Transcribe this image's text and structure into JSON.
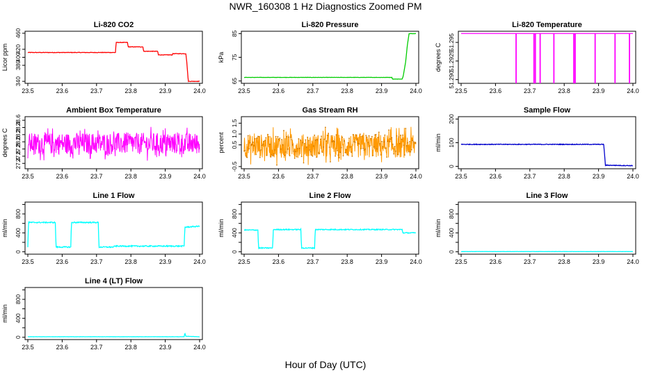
{
  "page": {
    "title": "NWR_160308  1 Hz Diagnostics Zoomed PM",
    "xlabel": "Hour of Day (UTC)"
  },
  "chart_data": [
    {
      "type": "line",
      "title": "Li-820 CO2",
      "ylabel": "Licor ppm",
      "xlim": [
        23.5,
        24.0
      ],
      "xticks": [
        "23.5",
        "23.6",
        "23.7",
        "23.8",
        "23.9",
        "24.0"
      ],
      "ylim": [
        335,
        465
      ],
      "yticks": [
        340,
        380,
        400,
        420,
        460
      ],
      "ytick_labels": [
        "340",
        "380",
        "400",
        "420",
        "460"
      ],
      "color": "#ff0000",
      "noise": 0.6,
      "series": [
        {
          "values": [
            [
              23.5,
              412
            ],
            [
              23.755,
              412
            ],
            [
              23.757,
              437
            ],
            [
              23.79,
              437
            ],
            [
              23.792,
              426
            ],
            [
              23.835,
              426
            ],
            [
              23.837,
              415
            ],
            [
              23.878,
              415
            ],
            [
              23.88,
              406
            ],
            [
              23.92,
              406
            ],
            [
              23.922,
              409
            ],
            [
              23.96,
              409
            ],
            [
              23.963,
              385
            ],
            [
              23.967,
              340
            ],
            [
              24.0,
              340
            ]
          ]
        }
      ]
    },
    {
      "type": "line",
      "title": "Li-820 Pressure",
      "ylabel": "kPa",
      "xlim": [
        23.5,
        24.0
      ],
      "xticks": [
        "23.5",
        "23.6",
        "23.7",
        "23.8",
        "23.9",
        "24.0"
      ],
      "ylim": [
        64,
        86
      ],
      "yticks": [
        65,
        75,
        85
      ],
      "ytick_labels": [
        "65",
        "75",
        "85"
      ],
      "color": "#00cc00",
      "noise": 0.05,
      "series": [
        {
          "values": [
            [
              23.5,
              66.5
            ],
            [
              23.93,
              66.5
            ],
            [
              23.932,
              65.8
            ],
            [
              23.96,
              65.8
            ],
            [
              23.963,
              67
            ],
            [
              23.97,
              73
            ],
            [
              23.975,
              80
            ],
            [
              23.98,
              85
            ],
            [
              24.0,
              85
            ]
          ]
        }
      ]
    },
    {
      "type": "line",
      "title": "Li-820 Temperature",
      "ylabel": "degrees C",
      "xlim": [
        23.5,
        24.0
      ],
      "xticks": [
        "23.5",
        "23.6",
        "23.7",
        "23.8",
        "23.9",
        "24.0"
      ],
      "ylim": [
        51.2895,
        51.2965
      ],
      "yticks": [
        51.29,
        51.2925,
        51.295
      ],
      "ytick_labels": [
        "51.290",
        "51.2925",
        "51.295"
      ],
      "color": "#ff00ff",
      "noise": 0,
      "baseline": 51.2962,
      "spikes": [
        23.66,
        23.712,
        23.716,
        23.73,
        23.77,
        23.828,
        23.832,
        23.89,
        23.948,
        23.99
      ]
    },
    {
      "type": "line",
      "title": "Ambient Box Temperature",
      "ylabel": "degrees C",
      "xlim": [
        23.5,
        24.0
      ],
      "xticks": [
        "23.5",
        "23.6",
        "23.7",
        "23.8",
        "23.9",
        "24.0"
      ],
      "ylim": [
        27.25,
        28.7
      ],
      "yticks": [
        27.4,
        27.6,
        27.8,
        28.0,
        28.2,
        28.4,
        28.6
      ],
      "ytick_labels": [
        "27.4",
        "27.6",
        "27.8",
        "28.0",
        "28.2",
        "28.4",
        "28.6"
      ],
      "color": "#ff00ff",
      "noise": 0,
      "band": {
        "mean": 27.95,
        "spread": 0.3,
        "n": 480
      }
    },
    {
      "type": "line",
      "title": "Gas Stream RH",
      "ylabel": "percent",
      "xlim": [
        23.5,
        24.0
      ],
      "xticks": [
        "23.5",
        "23.6",
        "23.7",
        "23.8",
        "23.9",
        "24.0"
      ],
      "ylim": [
        -0.6,
        1.8
      ],
      "yticks": [
        -0.5,
        0.5,
        1.0,
        1.5
      ],
      "ytick_labels": [
        "-0.5",
        "0.5",
        "1.0",
        "1.5"
      ],
      "color": "#ff9900",
      "noise": 0,
      "band": {
        "mean": 0.45,
        "spread": 0.55,
        "n": 520
      }
    },
    {
      "type": "line",
      "title": "Sample Flow",
      "ylabel": "ml/min",
      "xlim": [
        23.5,
        24.0
      ],
      "xticks": [
        "23.5",
        "23.6",
        "23.7",
        "23.8",
        "23.9",
        "24.0"
      ],
      "ylim": [
        -10,
        210
      ],
      "yticks": [
        0,
        100,
        200
      ],
      "ytick_labels": [
        "0",
        "100",
        "200"
      ],
      "color": "#0000cc",
      "noise": 1.5,
      "series": [
        {
          "values": [
            [
              23.5,
              93
            ],
            [
              23.915,
              93
            ],
            [
              23.92,
              5
            ],
            [
              24.0,
              3
            ]
          ]
        }
      ]
    },
    {
      "type": "line",
      "title": "Line 1 Flow",
      "ylabel": "ml/min",
      "xlim": [
        23.5,
        24.0
      ],
      "xticks": [
        "23.5",
        "23.6",
        "23.7",
        "23.8",
        "23.9",
        "24.0"
      ],
      "ylim": [
        -50,
        1050
      ],
      "yticks": [
        0,
        200,
        400,
        600,
        800,
        1000
      ],
      "ytick_labels": [
        "0",
        "",
        "400",
        "",
        "800",
        ""
      ],
      "color": "#00ffff",
      "noise": 12,
      "series": [
        {
          "values": [
            [
              23.5,
              100
            ],
            [
              23.502,
              620
            ],
            [
              23.58,
              620
            ],
            [
              23.582,
              100
            ],
            [
              23.625,
              100
            ],
            [
              23.627,
              620
            ],
            [
              23.705,
              620
            ],
            [
              23.707,
              100
            ],
            [
              23.75,
              100
            ],
            [
              23.752,
              120
            ],
            [
              23.955,
              120
            ],
            [
              23.957,
              520
            ],
            [
              24.0,
              540
            ]
          ]
        }
      ]
    },
    {
      "type": "line",
      "title": "Line 2 Flow",
      "ylabel": "ml/min",
      "xlim": [
        23.5,
        24.0
      ],
      "xticks": [
        "23.5",
        "23.6",
        "23.7",
        "23.8",
        "23.9",
        "24.0"
      ],
      "ylim": [
        -50,
        1050
      ],
      "yticks": [
        0,
        200,
        400,
        600,
        800,
        1000
      ],
      "ytick_labels": [
        "0",
        "",
        "400",
        "",
        "800",
        ""
      ],
      "color": "#00ffff",
      "noise": 10,
      "series": [
        {
          "values": [
            [
              23.5,
              460
            ],
            [
              23.54,
              460
            ],
            [
              23.542,
              80
            ],
            [
              23.583,
              80
            ],
            [
              23.585,
              470
            ],
            [
              23.665,
              470
            ],
            [
              23.667,
              80
            ],
            [
              23.705,
              80
            ],
            [
              23.707,
              470
            ],
            [
              23.96,
              470
            ],
            [
              23.962,
              400
            ],
            [
              24.0,
              400
            ]
          ]
        }
      ]
    },
    {
      "type": "line",
      "title": "Line 3 Flow",
      "ylabel": "ml/min",
      "xlim": [
        23.5,
        24.0
      ],
      "xticks": [
        "23.5",
        "23.6",
        "23.7",
        "23.8",
        "23.9",
        "24.0"
      ],
      "ylim": [
        -50,
        1050
      ],
      "yticks": [
        0,
        200,
        400,
        600,
        800,
        1000
      ],
      "ytick_labels": [
        "0",
        "",
        "400",
        "",
        "800",
        ""
      ],
      "color": "#00ffff",
      "noise": 2,
      "series": [
        {
          "values": [
            [
              23.5,
              5
            ],
            [
              24.0,
              5
            ]
          ]
        }
      ]
    },
    {
      "type": "line",
      "title": "Line 4 (LT) Flow",
      "ylabel": "ml/min",
      "xlim": [
        23.5,
        24.0
      ],
      "xticks": [
        "23.5",
        "23.6",
        "23.7",
        "23.8",
        "23.9",
        "24.0"
      ],
      "ylim": [
        -50,
        1050
      ],
      "yticks": [
        0,
        200,
        400,
        600,
        800,
        1000
      ],
      "ytick_labels": [
        "0",
        "",
        "400",
        "",
        "800",
        ""
      ],
      "color": "#00ffff",
      "noise": 2,
      "series": [
        {
          "values": [
            [
              23.5,
              10
            ],
            [
              23.955,
              10
            ],
            [
              23.957,
              90
            ],
            [
              23.96,
              20
            ],
            [
              24.0,
              10
            ]
          ]
        }
      ]
    }
  ]
}
